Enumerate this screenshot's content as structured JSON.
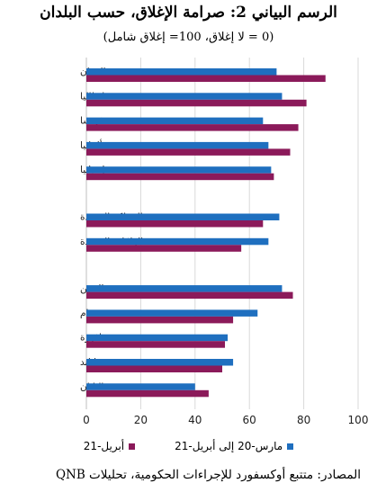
{
  "chart_data": {
    "type": "bar",
    "orientation": "horizontal",
    "title": "الرسم البياني 2: صرامة الإغلاق، حسب البلدان",
    "subtitle": "(0 = لا إغلاق، 100= إغلاق شامل)",
    "xlim": [
      0,
      100
    ],
    "x_ticks": [
      "0",
      "20",
      "40",
      "60",
      "80",
      "100"
    ],
    "grid": true,
    "legend_position": "bottom",
    "groups": [
      [
        "اليونان",
        "إيطاليا",
        "فرنسا",
        "ألمانيا",
        "إسبانيا"
      ],
      [
        "المملكة المتحدة",
        "الولايات المتحدة"
      ],
      [
        "الصين",
        "فيتنام",
        "سنغافورة",
        "تايلند",
        "اليابان"
      ]
    ],
    "categories": [
      "اليونان",
      "إيطاليا",
      "فرنسا",
      "ألمانيا",
      "إسبانيا",
      "المملكة المتحدة",
      "الولايات المتحدة",
      "الصين",
      "فيتنام",
      "سنغافورة",
      "تايلند",
      "اليابان"
    ],
    "series": [
      {
        "name": "مارس-20 إلى أبريل-21",
        "color": "#1f6fbf",
        "values": [
          70,
          72,
          65,
          67,
          68,
          71,
          67,
          72,
          63,
          52,
          54,
          40
        ]
      },
      {
        "name": "أبريل-21",
        "color": "#8b1a5a",
        "values": [
          88,
          81,
          78,
          75,
          69,
          65,
          57,
          76,
          54,
          51,
          50,
          45
        ]
      }
    ]
  },
  "source_note": "المصادر: متتبع أوكسفورد للإجراءات الحكومية، تحليلات QNB"
}
